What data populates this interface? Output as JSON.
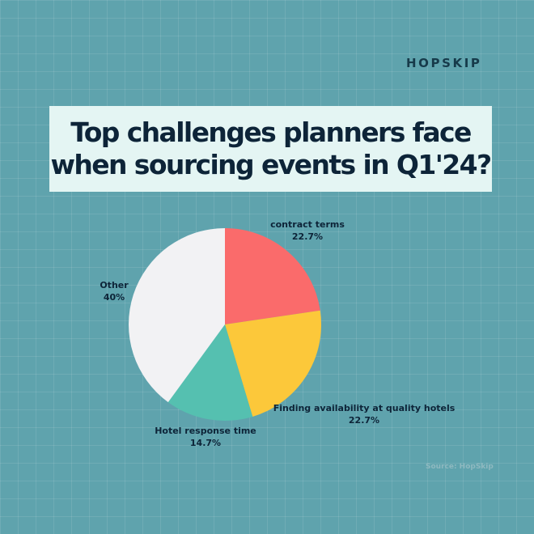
{
  "brand": "HOPSKIP",
  "title": {
    "line1": "Top challenges planners face",
    "line2": "when sourcing events in Q1'24?"
  },
  "source": "Source: HopSkip",
  "colors": {
    "background": "#5fa3ad",
    "title_box": "#e4f5f3",
    "text_dark": "#0d2438"
  },
  "chart_data": {
    "type": "pie",
    "start": "12 o'clock, clockwise",
    "slices": [
      {
        "label": "contract terms",
        "value": 22.7,
        "display": "22.7%",
        "color": "#fa6b6b"
      },
      {
        "label": "Finding availability at quality hotels",
        "value": 22.7,
        "display": "22.7%",
        "color": "#fcc83a"
      },
      {
        "label": "Hotel response time",
        "value": 14.7,
        "display": "14.7%",
        "color": "#55c0b0"
      },
      {
        "label": "Other",
        "value": 40,
        "display": "40%",
        "color": "#f2f2f4"
      }
    ]
  }
}
